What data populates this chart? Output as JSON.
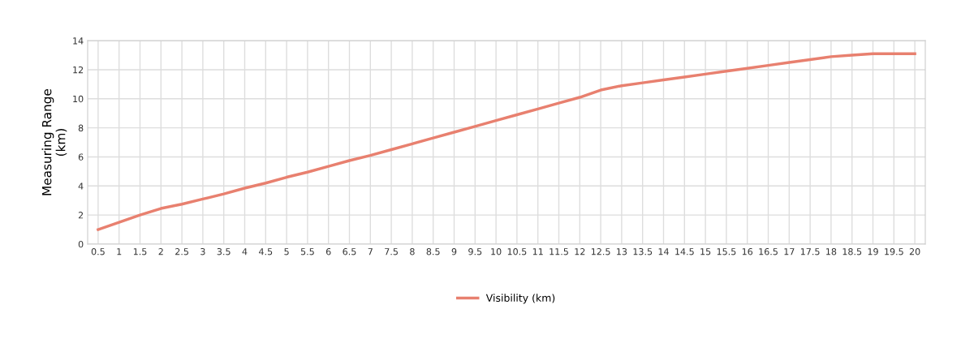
{
  "chart_data": {
    "type": "line",
    "ylabel": "Measuring Range\n(km)",
    "categories": [
      "0.5",
      "1",
      "1.5",
      "2",
      "2.5",
      "3",
      "3.5",
      "4",
      "4.5",
      "5",
      "5.5",
      "6",
      "6.5",
      "7",
      "7.5",
      "8",
      "8.5",
      "9",
      "9.5",
      "10",
      "10.5",
      "11",
      "11.5",
      "12",
      "12.5",
      "13",
      "13.5",
      "14",
      "14.5",
      "15",
      "15.5",
      "16",
      "16.5",
      "17",
      "17.5",
      "18",
      "18.5",
      "19",
      "19.5",
      "20"
    ],
    "series": [
      {
        "name": "Visibility (km)",
        "color": "#e8806f",
        "values": [
          1.0,
          1.5,
          2.0,
          2.45,
          2.75,
          3.1,
          3.45,
          3.85,
          4.2,
          4.6,
          4.95,
          5.35,
          5.75,
          6.1,
          6.5,
          6.9,
          7.3,
          7.7,
          8.1,
          8.5,
          8.9,
          9.3,
          9.7,
          10.1,
          10.6,
          10.9,
          11.1,
          11.3,
          11.5,
          11.7,
          11.9,
          12.1,
          12.3,
          12.5,
          12.7,
          12.9,
          13.0,
          13.1,
          13.1,
          13.1
        ]
      }
    ],
    "ylim": [
      0,
      14
    ],
    "yticks": [
      0,
      2,
      4,
      6,
      8,
      10,
      12,
      14
    ],
    "grid": true,
    "legend": "bottom",
    "marker": "none",
    "line_style": "solid"
  }
}
